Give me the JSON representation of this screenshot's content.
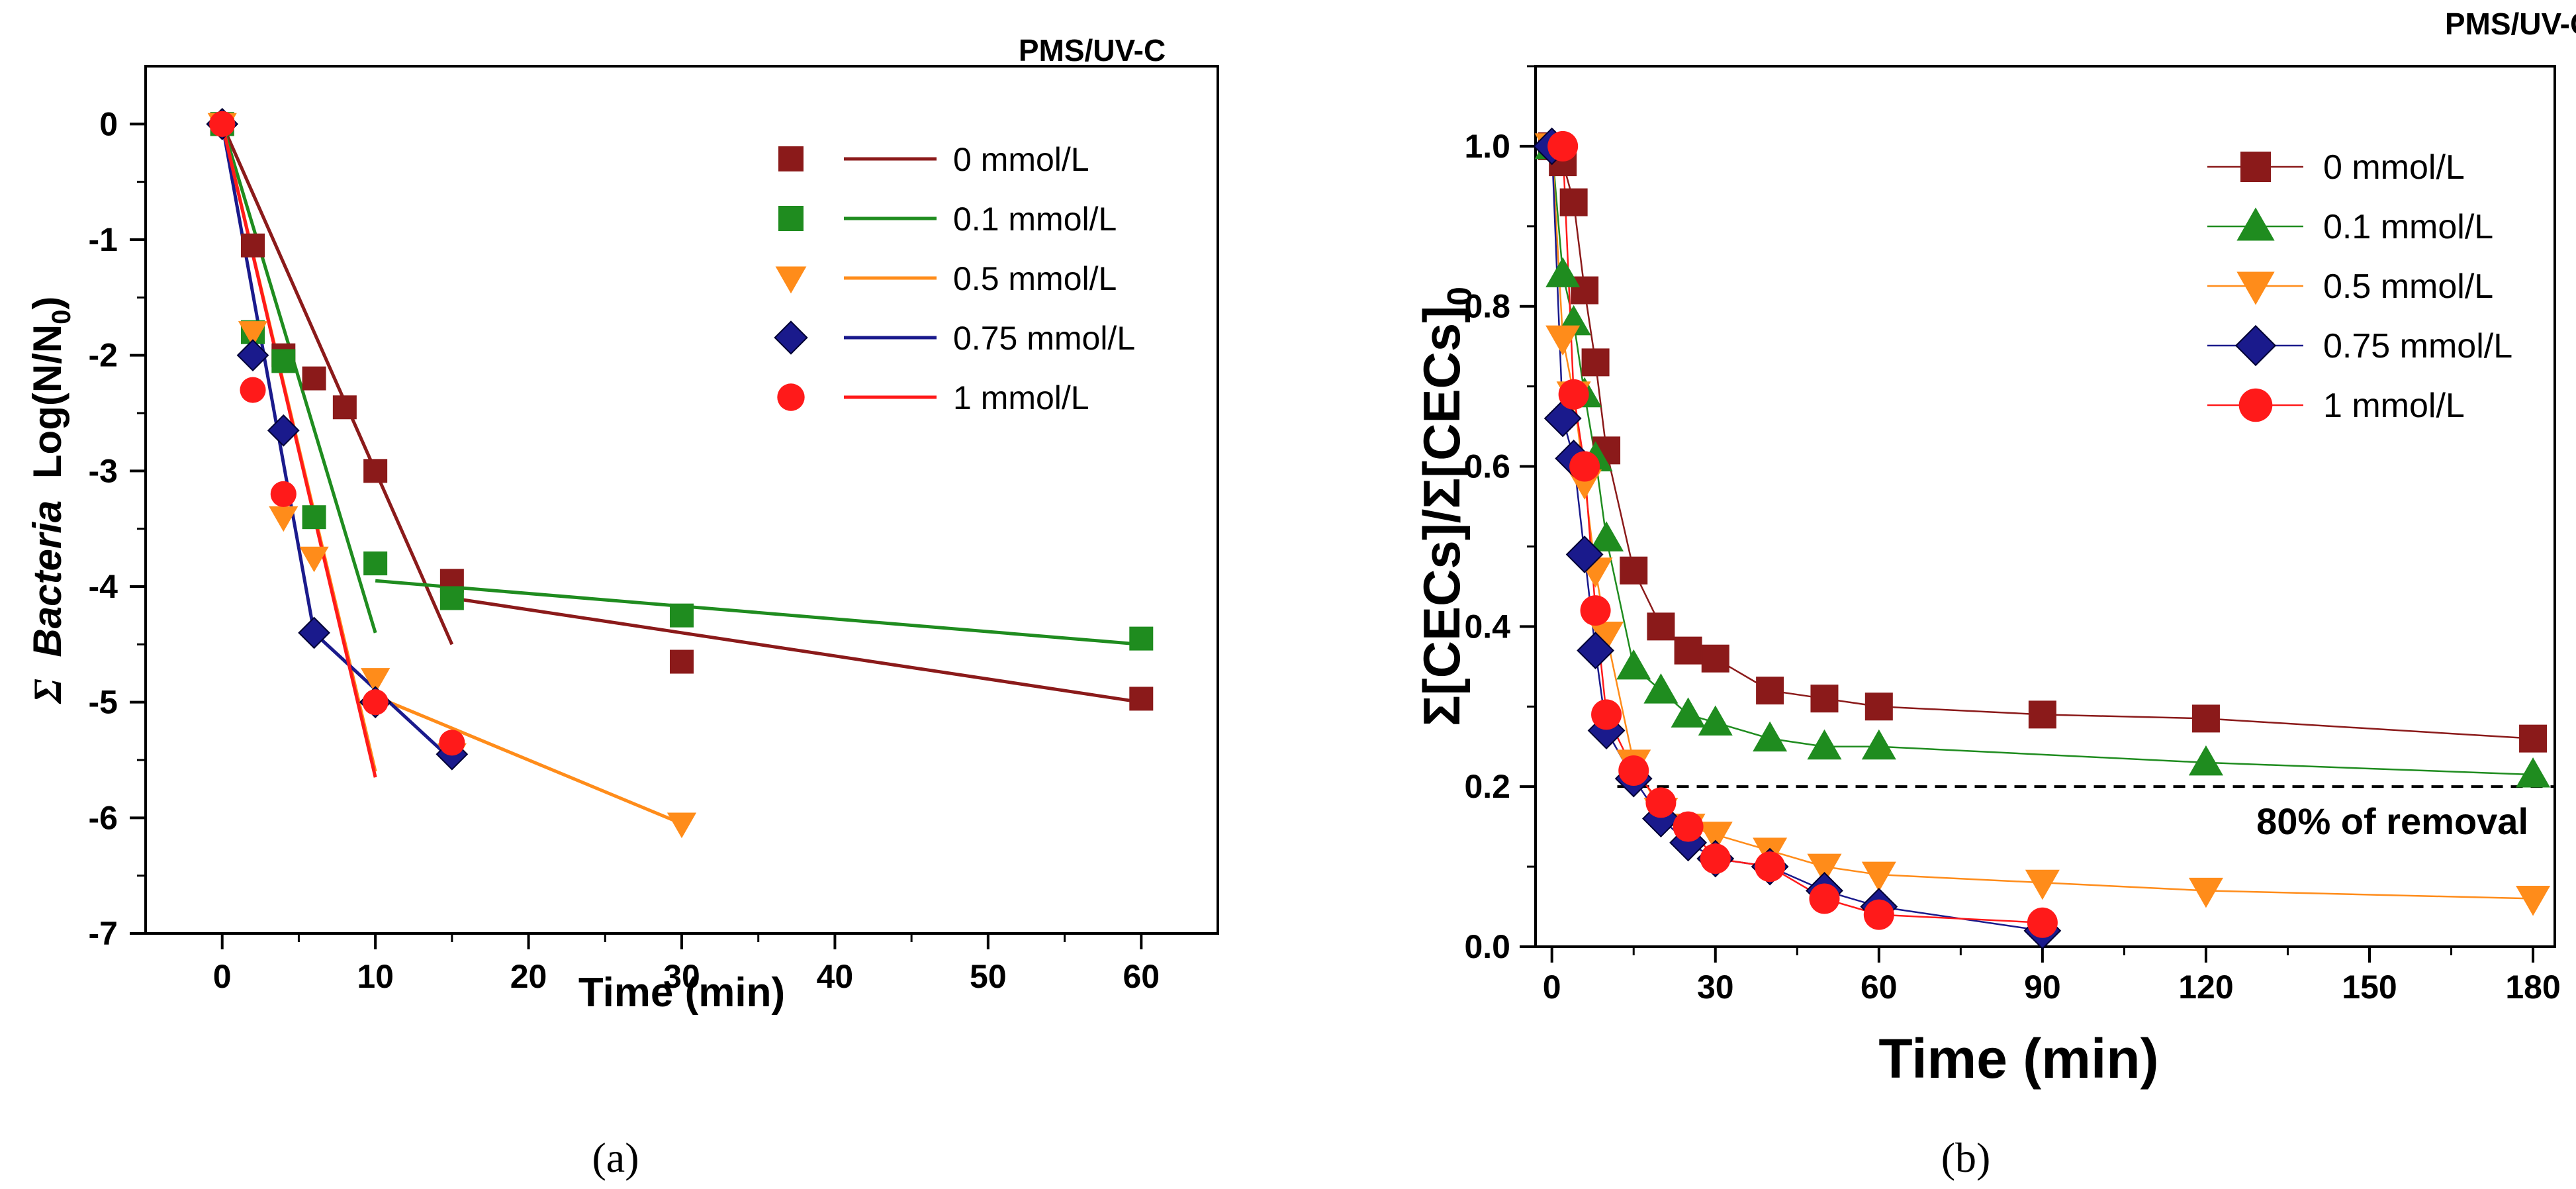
{
  "chart_data": [
    {
      "type": "scatter",
      "panel_label": "(a)",
      "title": "PMS/UV-C",
      "xlabel": "Time (min)",
      "ylabel_sigma": "Σ",
      "ylabel_italic": "Bacteria",
      "ylabel_rest": "Log(N/N",
      "ylabel_sub": "0",
      "ylabel_close": ")",
      "xlim": [
        -5,
        65
      ],
      "ylim": [
        -7,
        0.5
      ],
      "xticks": [
        0,
        10,
        20,
        30,
        40,
        50,
        60
      ],
      "yticks": [
        0,
        -1,
        -2,
        -3,
        -4,
        -5,
        -6,
        -7
      ],
      "series": [
        {
          "name": "0 mmol/L",
          "color": "#8B1A1A",
          "marker": "square",
          "x": [
            0,
            2,
            4,
            6,
            8,
            10,
            15,
            30,
            60
          ],
          "y": [
            0,
            -1.05,
            -2.0,
            -2.2,
            -2.45,
            -3.0,
            -3.95,
            -4.65,
            -4.97
          ],
          "fits": [
            {
              "x": [
                0,
                15
              ],
              "y": [
                0,
                -4.5
              ]
            },
            {
              "x": [
                15,
                60
              ],
              "y": [
                -4.1,
                -5.0
              ]
            }
          ]
        },
        {
          "name": "0.1 mmol/L",
          "color": "#1F8C1F",
          "marker": "square",
          "x": [
            0,
            2,
            4,
            6,
            10,
            15,
            30,
            60
          ],
          "y": [
            0,
            -1.8,
            -2.05,
            -3.4,
            -3.8,
            -4.1,
            -4.25,
            -4.45
          ],
          "fits": [
            {
              "x": [
                0,
                10
              ],
              "y": [
                0,
                -4.4
              ]
            },
            {
              "x": [
                10,
                60
              ],
              "y": [
                -3.95,
                -4.5
              ]
            }
          ]
        },
        {
          "name": "0.5 mmol/L",
          "color": "#FF8C1A",
          "marker": "triangle-down",
          "x": [
            0,
            2,
            4,
            6,
            10,
            15,
            30
          ],
          "y": [
            0,
            -1.8,
            -3.4,
            -3.75,
            -4.8,
            -5.45,
            -6.05
          ],
          "fits": [
            {
              "x": [
                0,
                10
              ],
              "y": [
                0,
                -5.6
              ]
            },
            {
              "x": [
                10,
                30
              ],
              "y": [
                -4.95,
                -6.05
              ]
            }
          ]
        },
        {
          "name": "0.75 mmol/L",
          "color": "#1A1A8C",
          "marker": "diamond",
          "x": [
            0,
            2,
            4,
            6,
            10,
            15
          ],
          "y": [
            0,
            -2.0,
            -2.65,
            -4.4,
            -5.0,
            -5.45
          ],
          "fits": [
            {
              "x": [
                0,
                6
              ],
              "y": [
                0,
                -4.4
              ]
            },
            {
              "x": [
                6,
                15
              ],
              "y": [
                -4.4,
                -5.5
              ]
            }
          ]
        },
        {
          "name": "1 mmol/L",
          "color": "#FF1A1A",
          "marker": "circle",
          "x": [
            0,
            2,
            4,
            10,
            15
          ],
          "y": [
            0,
            -2.3,
            -3.2,
            -5.0,
            -5.35
          ],
          "fits": [
            {
              "x": [
                0,
                10
              ],
              "y": [
                0,
                -5.65
              ]
            }
          ]
        }
      ]
    },
    {
      "type": "line",
      "panel_label": "(b)",
      "title": "PMS/UV-C",
      "xlabel": "Time (min)",
      "ylabel_main": "Σ[CECs]/Σ[CECs]",
      "ylabel_sub": "0",
      "xlim": [
        -3,
        184
      ],
      "ylim": [
        0,
        1.1
      ],
      "xticks": [
        0,
        30,
        60,
        90,
        120,
        150,
        180
      ],
      "yticks": [
        0.0,
        0.2,
        0.4,
        0.6,
        0.8,
        1.0
      ],
      "reference_line": {
        "y": 0.2,
        "label": "80% of removal"
      },
      "series": [
        {
          "name": "0 mmol/L",
          "color": "#8B1A1A",
          "marker": "square",
          "x": [
            0,
            2,
            4,
            6,
            8,
            10,
            15,
            20,
            25,
            30,
            40,
            50,
            60,
            90,
            120,
            180
          ],
          "y": [
            1.0,
            0.98,
            0.93,
            0.82,
            0.73,
            0.62,
            0.47,
            0.4,
            0.37,
            0.36,
            0.32,
            0.31,
            0.3,
            0.29,
            0.285,
            0.26
          ]
        },
        {
          "name": "0.1 mmol/L",
          "color": "#1F8C1F",
          "marker": "triangle-up",
          "x": [
            0,
            2,
            4,
            6,
            8,
            10,
            15,
            20,
            25,
            30,
            40,
            50,
            60,
            120,
            180
          ],
          "y": [
            1.0,
            0.84,
            0.78,
            0.69,
            0.61,
            0.51,
            0.35,
            0.32,
            0.29,
            0.28,
            0.26,
            0.25,
            0.25,
            0.23,
            0.215
          ]
        },
        {
          "name": "0.5 mmol/L",
          "color": "#FF8C1A",
          "marker": "triangle-down",
          "x": [
            0,
            2,
            4,
            6,
            8,
            10,
            15,
            20,
            25,
            30,
            40,
            50,
            60,
            90,
            120,
            180
          ],
          "y": [
            1.0,
            0.76,
            0.69,
            0.58,
            0.47,
            0.39,
            0.23,
            0.17,
            0.15,
            0.14,
            0.12,
            0.1,
            0.09,
            0.08,
            0.07,
            0.06
          ]
        },
        {
          "name": "0.75 mmol/L",
          "color": "#1A1A8C",
          "marker": "diamond",
          "x": [
            0,
            2,
            4,
            6,
            8,
            10,
            15,
            20,
            25,
            30,
            40,
            50,
            60,
            90
          ],
          "y": [
            1.0,
            0.66,
            0.61,
            0.49,
            0.37,
            0.27,
            0.21,
            0.16,
            0.13,
            0.11,
            0.1,
            0.07,
            0.05,
            0.02
          ]
        },
        {
          "name": "1 mmol/L",
          "color": "#FF1A1A",
          "marker": "circle",
          "x": [
            2,
            4,
            6,
            8,
            10,
            15,
            20,
            25,
            30,
            40,
            50,
            60,
            90
          ],
          "y": [
            1.0,
            0.69,
            0.6,
            0.42,
            0.29,
            0.22,
            0.18,
            0.15,
            0.11,
            0.1,
            0.06,
            0.04,
            0.03
          ]
        }
      ]
    }
  ]
}
